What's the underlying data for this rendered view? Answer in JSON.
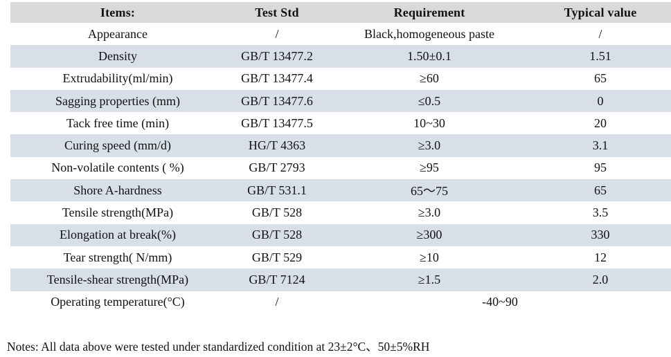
{
  "table": {
    "columns": [
      {
        "label": "Items:"
      },
      {
        "label": "Test Std"
      },
      {
        "label": "Requirement"
      },
      {
        "label": "Typical value"
      }
    ],
    "rows": [
      {
        "item": "Appearance",
        "std": "/",
        "req": "Black,homogeneous paste",
        "typ": "/"
      },
      {
        "item": "Density",
        "std": "GB/T 13477.2",
        "req": "1.50±0.1",
        "typ": "1.51"
      },
      {
        "item": "Extrudability(ml/min)",
        "std": "GB/T 13477.4",
        "req": "≥60",
        "typ": "65"
      },
      {
        "item": "Sagging properties (mm)",
        "std": "GB/T 13477.6",
        "req": "≤0.5",
        "typ": "0"
      },
      {
        "item": "Tack free time (min)",
        "std": "GB/T 13477.5",
        "req": "10~30",
        "typ": "20"
      },
      {
        "item": "Curing speed (mm/d)",
        "std": "HG/T 4363",
        "req": "≥3.0",
        "typ": "3.1"
      },
      {
        "item": "Non-volatile contents ( %)",
        "std": "GB/T 2793",
        "req": "≥95",
        "typ": "95"
      },
      {
        "item": "Shore A-hardness",
        "std": "GB/T 531.1",
        "req": "65～75",
        "typ": "65"
      },
      {
        "item": "Tensile strength(MPa)",
        "std": "GB/T 528",
        "req": "≥3.0",
        "typ": "3.5"
      },
      {
        "item": "Elongation at break(%)",
        "std": "GB/T 528",
        "req": "≥300",
        "typ": "330"
      },
      {
        "item": "Tear strength( N/mm)",
        "std": "GB/T 529",
        "req": "≥10",
        "typ": "12"
      },
      {
        "item": "Tensile-shear strength(MPa)",
        "std": "GB/T 7124",
        "req": "≥1.5",
        "typ": "2.0"
      },
      {
        "item": "Operating temperature(°C)",
        "std": "/",
        "req": "-40~90",
        "typ": null,
        "merge": true
      }
    ]
  },
  "notes": {
    "text": "Notes: All data above were tested under standardized condition at 23±2°C、50±5%RH"
  },
  "colors": {
    "header_bg": "#d9d9d9",
    "stripe_bg": "#d9dfe9",
    "text": "#111111"
  }
}
